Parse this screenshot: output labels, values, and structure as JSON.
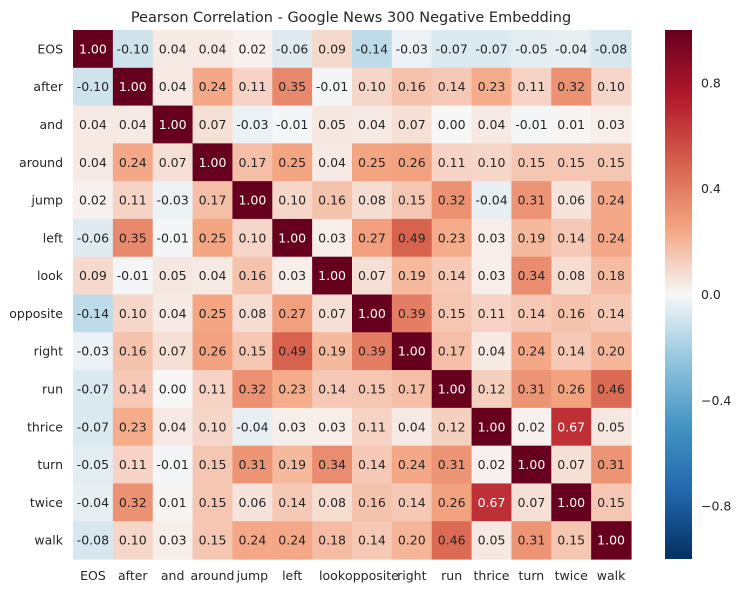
{
  "chart_data": {
    "type": "heatmap",
    "title": "Pearson Correlation - Google News 300 Negative Embedding",
    "labels": [
      "EOS",
      "after",
      "and",
      "around",
      "jump",
      "left",
      "look",
      "opposite",
      "right",
      "run",
      "thrice",
      "turn",
      "twice",
      "walk"
    ],
    "matrix": [
      [
        1.0,
        -0.1,
        0.04,
        0.04,
        0.02,
        -0.06,
        0.09,
        -0.14,
        -0.03,
        -0.07,
        -0.07,
        -0.05,
        -0.04,
        -0.08
      ],
      [
        -0.1,
        1.0,
        0.04,
        0.24,
        0.11,
        0.35,
        -0.01,
        0.1,
        0.16,
        0.14,
        0.23,
        0.11,
        0.32,
        0.1
      ],
      [
        0.04,
        0.04,
        1.0,
        0.07,
        -0.03,
        -0.01,
        0.05,
        0.04,
        0.07,
        0.0,
        0.04,
        -0.01,
        0.01,
        0.03
      ],
      [
        0.04,
        0.24,
        0.07,
        1.0,
        0.17,
        0.25,
        0.04,
        0.25,
        0.26,
        0.11,
        0.1,
        0.15,
        0.15,
        0.15
      ],
      [
        0.02,
        0.11,
        -0.03,
        0.17,
        1.0,
        0.1,
        0.16,
        0.08,
        0.15,
        0.32,
        -0.04,
        0.31,
        0.06,
        0.24
      ],
      [
        -0.06,
        0.35,
        -0.01,
        0.25,
        0.1,
        1.0,
        0.03,
        0.27,
        0.49,
        0.23,
        0.03,
        0.19,
        0.14,
        0.24
      ],
      [
        0.09,
        -0.01,
        0.05,
        0.04,
        0.16,
        0.03,
        1.0,
        0.07,
        0.19,
        0.14,
        0.03,
        0.34,
        0.08,
        0.18
      ],
      [
        -0.14,
        0.1,
        0.04,
        0.25,
        0.08,
        0.27,
        0.07,
        1.0,
        0.39,
        0.15,
        0.11,
        0.14,
        0.16,
        0.14
      ],
      [
        -0.03,
        0.16,
        0.07,
        0.26,
        0.15,
        0.49,
        0.19,
        0.39,
        1.0,
        0.17,
        0.04,
        0.24,
        0.14,
        0.2
      ],
      [
        -0.07,
        0.14,
        0.0,
        0.11,
        0.32,
        0.23,
        0.14,
        0.15,
        0.17,
        1.0,
        0.12,
        0.31,
        0.26,
        0.46
      ],
      [
        -0.07,
        0.23,
        0.04,
        0.1,
        -0.04,
        0.03,
        0.03,
        0.11,
        0.04,
        0.12,
        1.0,
        0.02,
        0.67,
        0.05
      ],
      [
        -0.05,
        0.11,
        -0.01,
        0.15,
        0.31,
        0.19,
        0.34,
        0.14,
        0.24,
        0.31,
        0.02,
        1.0,
        0.07,
        0.31
      ],
      [
        -0.04,
        0.32,
        0.01,
        0.15,
        0.06,
        0.14,
        0.08,
        0.16,
        0.14,
        0.26,
        0.67,
        0.07,
        1.0,
        0.15
      ],
      [
        -0.08,
        0.1,
        0.03,
        0.15,
        0.24,
        0.24,
        0.18,
        0.14,
        0.2,
        0.46,
        0.05,
        0.31,
        0.15,
        1.0
      ]
    ],
    "value_range": [
      -1,
      1
    ],
    "colormap": "RdBu_r",
    "colorbar_ticks": [
      0.8,
      0.4,
      0.0,
      -0.4,
      -0.8
    ],
    "colorbar_tick_labels": [
      "0.8",
      "0.4",
      "0.0",
      "−0.4",
      "−0.8"
    ],
    "grid": false
  }
}
